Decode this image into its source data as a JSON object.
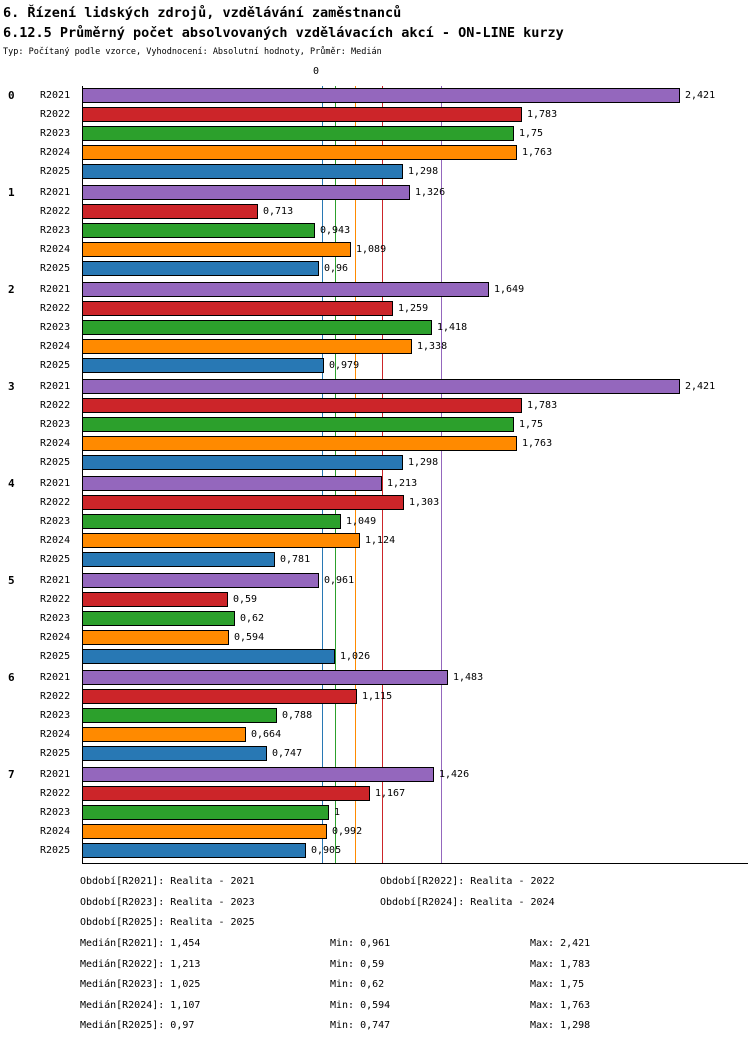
{
  "header": {
    "title_line1": "6. Řízení lidských zdrojů, vzdělávání zaměstnanců",
    "title_line2": "6.12.5 Průměrný počet absolvovaných vzdělávacích akcí - ON-LINE kurzy",
    "subtitle": "Typ: Počítaný podle vzorce, Vyhodnocení: Absolutní hodnoty, Průměr: Medián"
  },
  "axis": {
    "zero_label": "0"
  },
  "chart_data": {
    "type": "bar",
    "orientation": "horizontal",
    "title": "6.12.5 Průměrný počet absolvovaných vzdělávacích akcí - ON-LINE kurzy",
    "xlim": [
      0,
      2.7
    ],
    "value_format": "czech decimal comma",
    "categories": [
      "0",
      "1",
      "2",
      "3",
      "4",
      "5",
      "6",
      "7"
    ],
    "series": [
      {
        "name": "R2021",
        "color": "#9467BD",
        "median": 1.454,
        "median_label": "1,454"
      },
      {
        "name": "R2022",
        "color": "#CC2529",
        "median": 1.213,
        "median_label": "1,213"
      },
      {
        "name": "R2023",
        "color": "#2CA02C",
        "median": 1.025,
        "median_label": "1,025"
      },
      {
        "name": "R2024",
        "color": "#FF8A00",
        "median": 1.107,
        "median_label": "1,107"
      },
      {
        "name": "R2025",
        "color": "#2878B4",
        "median": 0.97,
        "median_label": "0,97"
      }
    ],
    "groups": [
      {
        "category": "0",
        "bars": [
          {
            "series": "R2021",
            "value": 2.421,
            "label": "2,421"
          },
          {
            "series": "R2022",
            "value": 1.783,
            "label": "1,783"
          },
          {
            "series": "R2023",
            "value": 1.75,
            "label": "1,75"
          },
          {
            "series": "R2024",
            "value": 1.763,
            "label": "1,763"
          },
          {
            "series": "R2025",
            "value": 1.298,
            "label": "1,298"
          }
        ]
      },
      {
        "category": "1",
        "bars": [
          {
            "series": "R2021",
            "value": 1.326,
            "label": "1,326"
          },
          {
            "series": "R2022",
            "value": 0.713,
            "label": "0,713"
          },
          {
            "series": "R2023",
            "value": 0.943,
            "label": "0,943"
          },
          {
            "series": "R2024",
            "value": 1.089,
            "label": "1,089"
          },
          {
            "series": "R2025",
            "value": 0.96,
            "label": "0,96"
          }
        ]
      },
      {
        "category": "2",
        "bars": [
          {
            "series": "R2021",
            "value": 1.649,
            "label": "1,649"
          },
          {
            "series": "R2022",
            "value": 1.259,
            "label": "1,259"
          },
          {
            "series": "R2023",
            "value": 1.418,
            "label": "1,418"
          },
          {
            "series": "R2024",
            "value": 1.338,
            "label": "1,338"
          },
          {
            "series": "R2025",
            "value": 0.979,
            "label": "0,979"
          }
        ]
      },
      {
        "category": "3",
        "bars": [
          {
            "series": "R2021",
            "value": 2.421,
            "label": "2,421"
          },
          {
            "series": "R2022",
            "value": 1.783,
            "label": "1,783"
          },
          {
            "series": "R2023",
            "value": 1.75,
            "label": "1,75"
          },
          {
            "series": "R2024",
            "value": 1.763,
            "label": "1,763"
          },
          {
            "series": "R2025",
            "value": 1.298,
            "label": "1,298"
          }
        ]
      },
      {
        "category": "4",
        "bars": [
          {
            "series": "R2021",
            "value": 1.213,
            "label": "1,213"
          },
          {
            "series": "R2022",
            "value": 1.303,
            "label": "1,303"
          },
          {
            "series": "R2023",
            "value": 1.049,
            "label": "1,049"
          },
          {
            "series": "R2024",
            "value": 1.124,
            "label": "1,124"
          },
          {
            "series": "R2025",
            "value": 0.781,
            "label": "0,781"
          }
        ]
      },
      {
        "category": "5",
        "bars": [
          {
            "series": "R2021",
            "value": 0.961,
            "label": "0,961"
          },
          {
            "series": "R2022",
            "value": 0.59,
            "label": "0,59"
          },
          {
            "series": "R2023",
            "value": 0.62,
            "label": "0,62"
          },
          {
            "series": "R2024",
            "value": 0.594,
            "label": "0,594"
          },
          {
            "series": "R2025",
            "value": 1.026,
            "label": "1,026"
          }
        ]
      },
      {
        "category": "6",
        "bars": [
          {
            "series": "R2021",
            "value": 1.483,
            "label": "1,483"
          },
          {
            "series": "R2022",
            "value": 1.115,
            "label": "1,115"
          },
          {
            "series": "R2023",
            "value": 0.788,
            "label": "0,788"
          },
          {
            "series": "R2024",
            "value": 0.664,
            "label": "0,664"
          },
          {
            "series": "R2025",
            "value": 0.747,
            "label": "0,747"
          }
        ]
      },
      {
        "category": "7",
        "bars": [
          {
            "series": "R2021",
            "value": 1.426,
            "label": "1,426"
          },
          {
            "series": "R2022",
            "value": 1.167,
            "label": "1,167"
          },
          {
            "series": "R2023",
            "value": 1.0,
            "label": "1"
          },
          {
            "series": "R2024",
            "value": 0.992,
            "label": "0,992"
          },
          {
            "series": "R2025",
            "value": 0.905,
            "label": "0,905"
          }
        ]
      }
    ]
  },
  "legend": {
    "items": [
      "Období[R2021]: Realita - 2021",
      "Období[R2022]: Realita - 2022",
      "Období[R2023]: Realita - 2023",
      "Období[R2024]: Realita - 2024",
      "Období[R2025]: Realita - 2025"
    ]
  },
  "stats": {
    "rows": [
      {
        "median": "Medián[R2021]: 1,454",
        "min": "Min: 0,961",
        "max": "Max: 2,421"
      },
      {
        "median": "Medián[R2022]: 1,213",
        "min": "Min: 0,59",
        "max": "Max: 1,783"
      },
      {
        "median": "Medián[R2023]: 1,025",
        "min": "Min: 0,62",
        "max": "Max: 1,75"
      },
      {
        "median": "Medián[R2024]: 1,107",
        "min": "Min: 0,594",
        "max": "Max: 1,763"
      },
      {
        "median": "Medián[R2025]: 0,97",
        "min": "Min: 0,747",
        "max": "Max: 1,298"
      }
    ]
  }
}
